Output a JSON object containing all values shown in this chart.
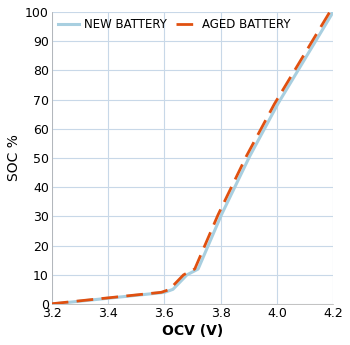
{
  "title": "",
  "xlabel": "OCV (V)",
  "ylabel": "SOC %",
  "xlim": [
    3.2,
    4.2
  ],
  "ylim": [
    0,
    100
  ],
  "xticks": [
    3.2,
    3.4,
    3.6,
    3.8,
    4.0,
    4.2
  ],
  "yticks": [
    0,
    10,
    20,
    30,
    40,
    50,
    60,
    70,
    80,
    90,
    100
  ],
  "new_battery_color": "#a8cfe0",
  "aged_battery_color": "#e05010",
  "new_battery_label": "NEW BATTERY",
  "aged_battery_label": "AGED BATTERY",
  "background_color": "#ffffff",
  "grid_color": "#c8d8e8",
  "new_battery_lw": 2.2,
  "aged_battery_lw": 2.0,
  "legend_fontsize": 8.5,
  "axis_label_fontsize": 10,
  "tick_fontsize": 9
}
